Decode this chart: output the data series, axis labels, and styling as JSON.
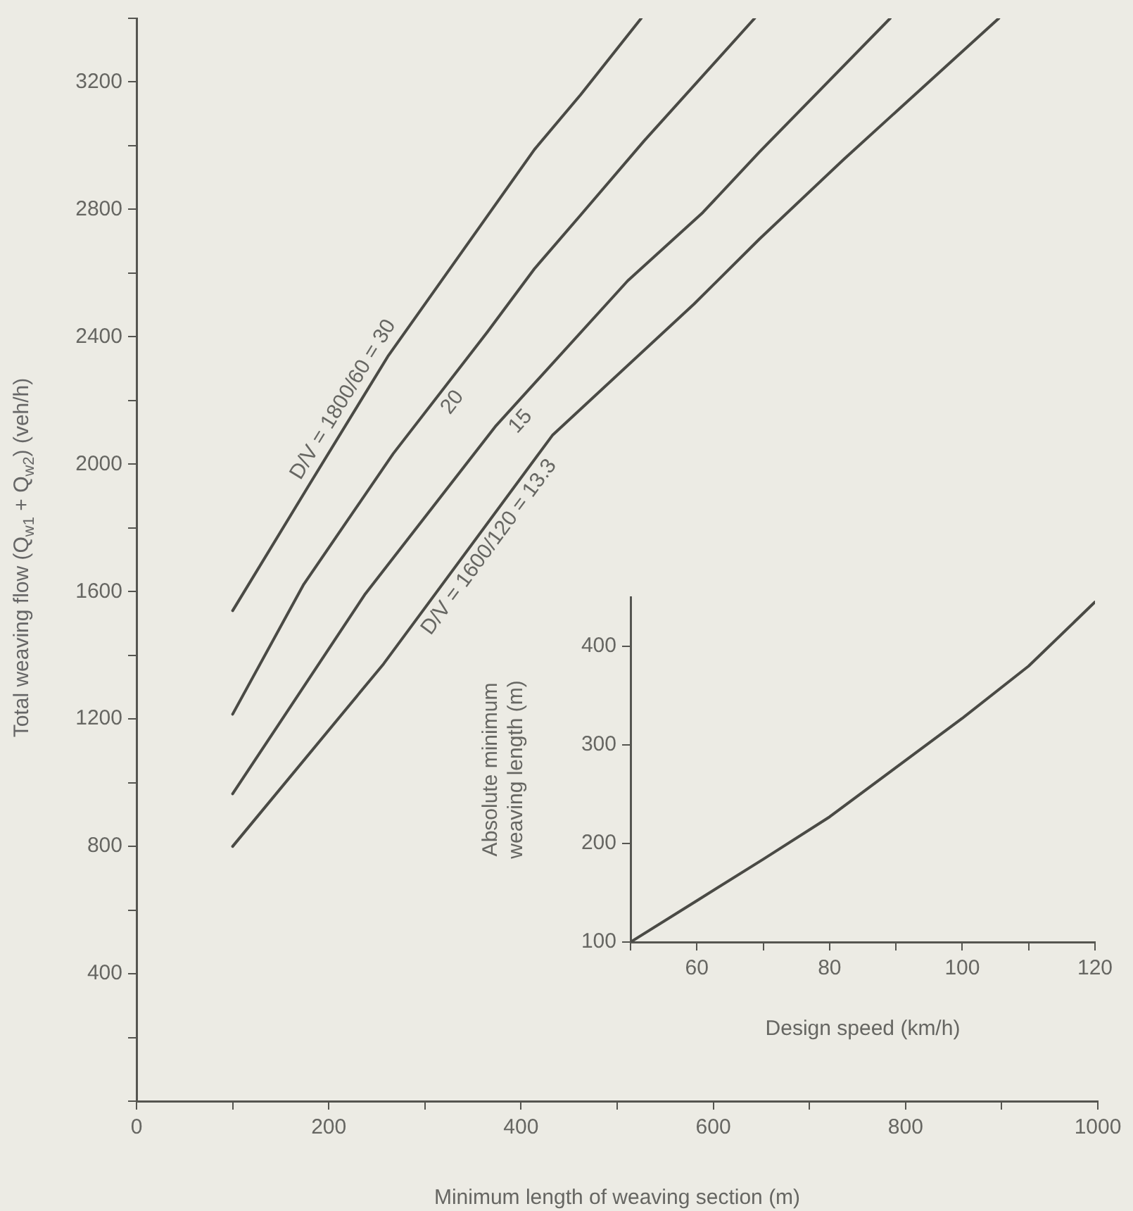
{
  "chart_data": [
    {
      "type": "line",
      "xlabel": "Minimum length of weaving section (m)",
      "ylabel": "Total weaving flow (Q$_{w1}$ + Q$_{w2}$) (veh/h)",
      "xlim": [
        0,
        1000
      ],
      "xticks": [
        0,
        {
          "value": 100,
          "label": null
        },
        200,
        {
          "value": 300,
          "label": null
        },
        400,
        {
          "value": 500,
          "label": null
        },
        600,
        {
          "value": 700,
          "label": null
        },
        800,
        {
          "value": 900,
          "label": null
        },
        1000
      ],
      "ylim": [
        0,
        3400
      ],
      "yticks": [
        {
          "value": 0,
          "label": null
        },
        {
          "value": 200,
          "label": null
        },
        400,
        {
          "value": 600,
          "label": null
        },
        800,
        {
          "value": 1000,
          "label": null
        },
        1200,
        {
          "value": 1400,
          "label": null
        },
        1600,
        {
          "value": 1800,
          "label": null
        },
        2000,
        {
          "value": 2200,
          "label": null
        },
        2400,
        {
          "value": 2600,
          "label": null
        },
        2800,
        {
          "value": 3000,
          "label": null
        },
        3200,
        {
          "value": 3400,
          "label": null
        }
      ],
      "series": [
        {
          "name": "D/V = 1800/60 = 30",
          "color": "#4a4a45",
          "x": [
            100,
            179,
            262,
            340,
            414,
            462,
            525
          ],
          "values": [
            1540,
            1932,
            2341,
            2673,
            2988,
            3160,
            3400
          ]
        },
        {
          "name": "20",
          "color": "#4a4a45",
          "x": [
            100,
            174,
            267,
            365,
            414,
            462,
            528,
            643
          ],
          "values": [
            1215,
            1623,
            2033,
            2415,
            2614,
            2782,
            3015,
            3400
          ]
        },
        {
          "name": "15",
          "color": "#4a4a45",
          "x": [
            100,
            238,
            374,
            511,
            589,
            648,
            784
          ],
          "values": [
            965,
            1593,
            2121,
            2576,
            2790,
            2980,
            3400
          ]
        },
        {
          "name": "D/V = 1600/120 = 13.3",
          "color": "#4a4a45",
          "x": [
            100,
            257,
            433,
            580,
            648,
            736,
            897
          ],
          "values": [
            800,
            1373,
            2092,
            2503,
            2707,
            2958,
            3400
          ]
        }
      ]
    },
    {
      "type": "line",
      "xlabel": "Design speed (km/h)",
      "ylabel": "Absolute minimum weaving length (m)",
      "xlim": [
        50,
        120
      ],
      "xticks": [
        {
          "value": 50,
          "label": null
        },
        60,
        {
          "value": 70,
          "label": null
        },
        80,
        {
          "value": 90,
          "label": null
        },
        100,
        {
          "value": 110,
          "label": null
        },
        120
      ],
      "ylim": [
        100,
        450
      ],
      "yticks": [
        100,
        200,
        300,
        400
      ],
      "series": [
        {
          "color": "#4a4a45",
          "x": [
            50,
            60,
            70,
            80,
            90,
            100,
            110,
            120
          ],
          "values": [
            100,
            142,
            184,
            227,
            277,
            327,
            380,
            445
          ]
        }
      ]
    }
  ]
}
